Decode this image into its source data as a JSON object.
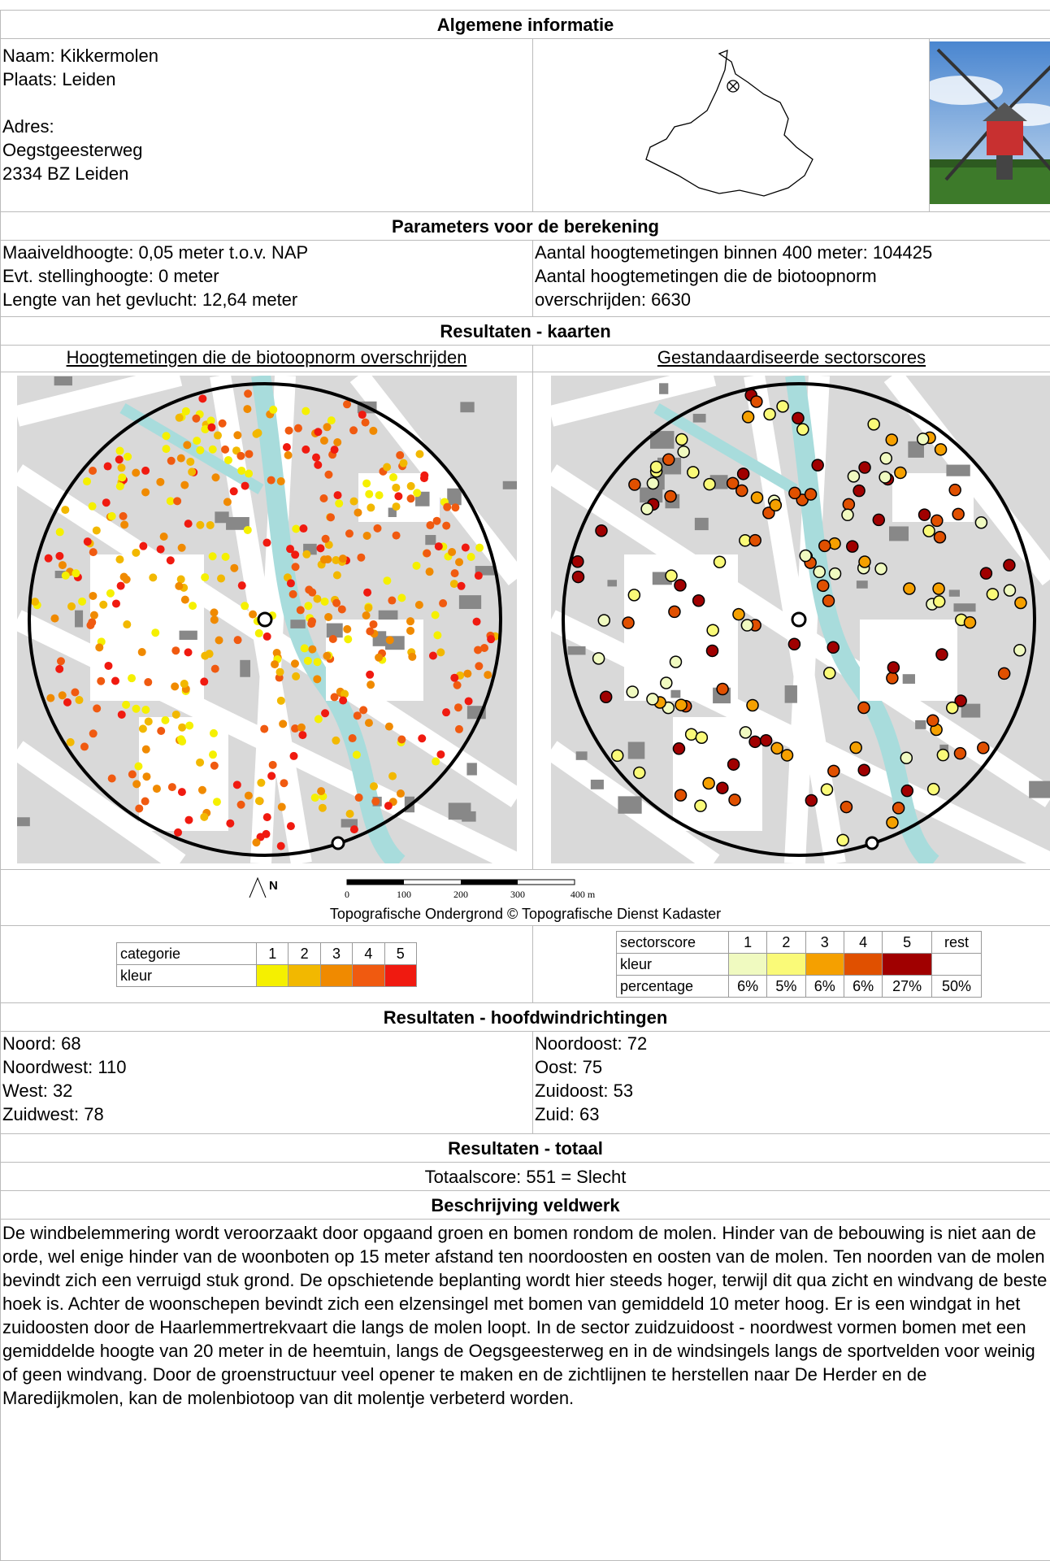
{
  "general": {
    "title": "Algemene informatie",
    "lines": [
      "Naam: Kikkermolen",
      "Plaats: Leiden",
      "Adres:",
      "Oegstgeesterweg",
      "2334 BZ Leiden"
    ]
  },
  "parameters": {
    "title": "Parameters voor de berekening",
    "left": [
      "Maaiveldhoogte: 0,05 meter t.o.v. NAP",
      "Evt. stellinghoogte: 0 meter",
      "Lengte van het gevlucht: 12,64 meter"
    ],
    "right": [
      "Aantal hoogtemetingen binnen 400 meter: 104425",
      "Aantal hoogtemetingen die de biotoopnorm overschrijden: 6630"
    ]
  },
  "maps": {
    "title": "Resultaten - kaarten",
    "left_title": "Hoogtemetingen die de biotoopnorm overschrijden",
    "right_title": "Gestandaardiseerde sectorscores",
    "north": "N",
    "scale": [
      "0",
      "100",
      "200",
      "300",
      "400 m"
    ],
    "credit": "Topografische Ondergrond © Topografische Dienst Kadaster"
  },
  "legend_categories": {
    "header": "categorie",
    "color_label": "kleur",
    "categories": [
      1,
      2,
      3,
      4,
      5
    ],
    "colors": [
      "#f5f000",
      "#f2b800",
      "#f08a00",
      "#f05a10",
      "#f01a10"
    ]
  },
  "legend_sectors": {
    "header": "sectorscore",
    "scores": [
      1,
      2,
      3,
      4,
      5
    ],
    "rest": "rest",
    "color_label": "kleur",
    "colors": [
      "#f0fac0",
      "#fafa78",
      "#f5a000",
      "#e05000",
      "#a00000"
    ],
    "percentage_label": "percentage",
    "percentages": [
      "6%",
      "5%",
      "6%",
      "6%",
      "27%",
      "50%"
    ]
  },
  "wind": {
    "title": "Resultaten - hoofdwindrichtingen",
    "left": [
      "Noord: 68",
      "Noordwest: 110",
      "West: 32",
      "Zuidwest: 78"
    ],
    "right": [
      "Noordoost: 72",
      "Oost: 75",
      "Zuidoost: 53",
      "Zuid: 63"
    ]
  },
  "total": {
    "title": "Resultaten - totaal",
    "score": "Totaalscore: 551 = Slecht"
  },
  "fieldwork": {
    "title": "Beschrijving veldwerk",
    "text": "De windbelemmering wordt veroorzaakt door opgaand groen en bomen rondom de molen. Hinder van de bebouwing is niet aan de orde, wel enige hinder van de woonboten op 15 meter afstand ten noordoosten en oosten van de molen. Ten noorden van de molen bevindt zich een verruigd stuk grond. De opschietende beplanting wordt hier steeds hoger, terwijl dit qua zicht en windvang de beste hoek is. Achter de woonschepen bevindt zich een elzensingel met bomen van gemiddeld 10 meter hoog. Er is een windgat in het zuidoosten door de Haarlemmertrekvaart die langs de molen loopt. In de sector zuidzuidoost - noordwest vormen bomen met een gemiddelde hoogte van 20 meter in de heemtuin, langs de Oegsgeesterweg en in de windsingels langs de sportvelden voor weinig of geen windvang. Door de groenstructuur veel opener te maken en de zichtlijnen te herstellen naar De Herder en de Maredijkmolen, kan de molenbiotoop van dit molentje verbeterd worden."
  }
}
